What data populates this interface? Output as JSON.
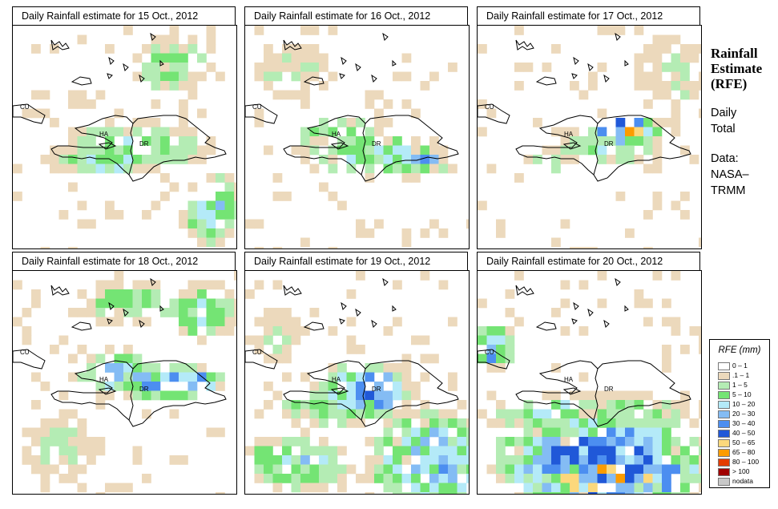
{
  "panels": [
    {
      "title": "Daily Rainfall estimate for  15 Oct., 2012"
    },
    {
      "title": "Daily Rainfall estimate for  16 Oct., 2012"
    },
    {
      "title": "Daily Rainfall estimate for  17 Oct., 2012"
    },
    {
      "title": "Daily Rainfall estimate for  18 Oct., 2012"
    },
    {
      "title": "Daily Rainfall estimate for  19 Oct., 2012"
    },
    {
      "title": "Daily Rainfall estimate for  20 Oct., 2012"
    }
  ],
  "map_labels": {
    "cuba": "CU",
    "haiti": "HA",
    "dominican_republic": "DR"
  },
  "side": {
    "title_line1": "Rainfall",
    "title_line2": "Estimate",
    "title_line3": "(RFE)",
    "daily": "Daily",
    "total": "Total",
    "data_label": "Data:",
    "source1": "NASA–",
    "source2": "TRMM"
  },
  "legend": {
    "title": "RFE (mm)",
    "items": [
      {
        "label": "0 – 1",
        "color": "#ffffff"
      },
      {
        "label": ".1 – 1",
        "color": "#ecd9bc"
      },
      {
        "label": "1 – 5",
        "color": "#b4ecb4"
      },
      {
        "label": "5 – 10",
        "color": "#74e474"
      },
      {
        "label": "10 – 20",
        "color": "#b4eaf8"
      },
      {
        "label": "20 – 30",
        "color": "#84bcf4"
      },
      {
        "label": "30 – 40",
        "color": "#4c8ef0"
      },
      {
        "label": "40 – 50",
        "color": "#2058d8"
      },
      {
        "label": "50 – 65",
        "color": "#fcd87c"
      },
      {
        "label": "65 – 80",
        "color": "#fc9c00"
      },
      {
        "label": "80 – 100",
        "color": "#e43c00"
      },
      {
        "label": "> 100",
        "color": "#a00000"
      },
      {
        "label": "nodata",
        "color": "#c8c8c8"
      }
    ]
  }
}
